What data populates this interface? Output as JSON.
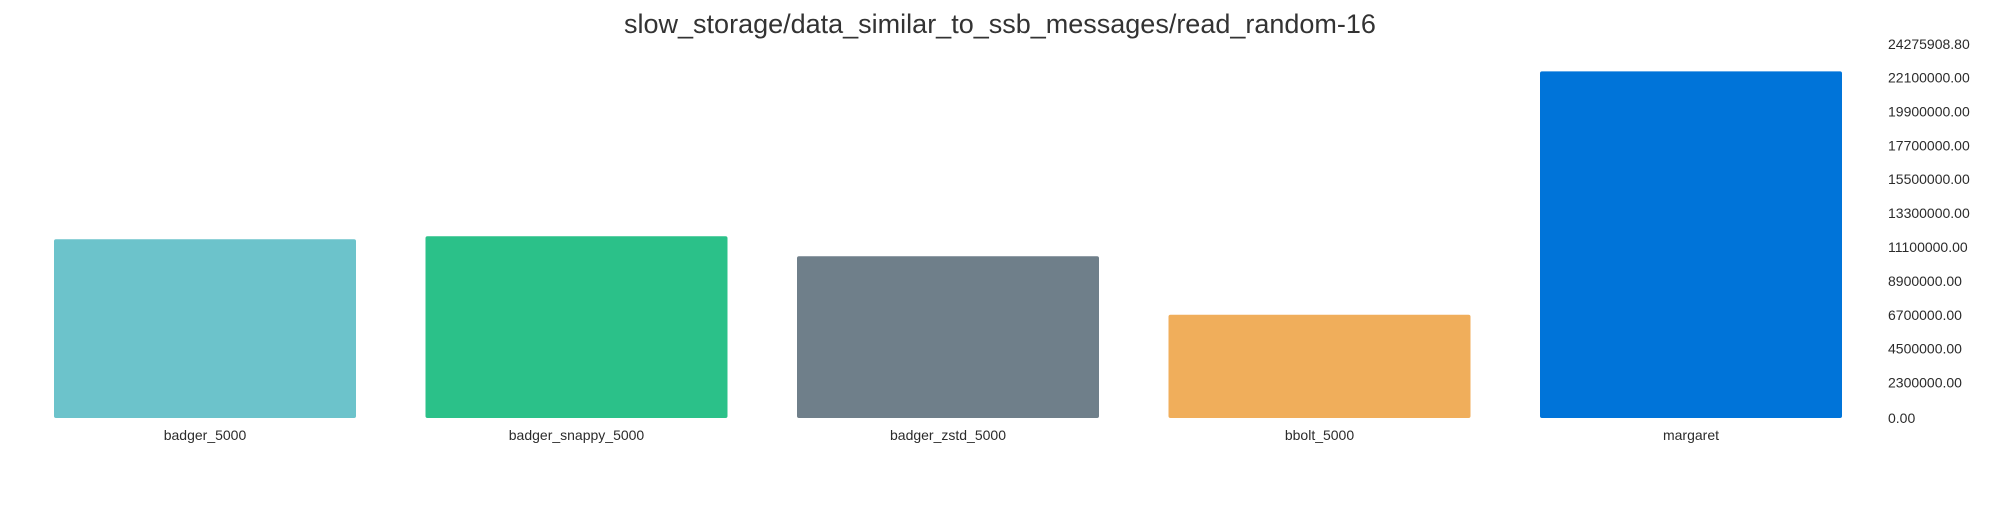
{
  "chart_data": {
    "type": "bar",
    "title": "slow_storage/data_similar_to_ssb_messages/read_random-16",
    "categories": [
      "badger_5000",
      "badger_snappy_5000",
      "badger_zstd_5000",
      "bbolt_5000",
      "margaret"
    ],
    "values": [
      11600000,
      11800000,
      10500000,
      6700000,
      22500000
    ],
    "colors": [
      "#6cc3cb",
      "#2bc189",
      "#6f7f8a",
      "#f0ae5b",
      "#0074d9"
    ],
    "ylim": [
      0,
      24275908.8
    ],
    "yticks": [
      "0.00",
      "2300000.00",
      "4500000.00",
      "6700000.00",
      "8900000.00",
      "11100000.00",
      "13300000.00",
      "15500000.00",
      "17700000.00",
      "19900000.00",
      "22100000.00",
      "24275908.80"
    ],
    "grid": false,
    "legend": "none"
  }
}
